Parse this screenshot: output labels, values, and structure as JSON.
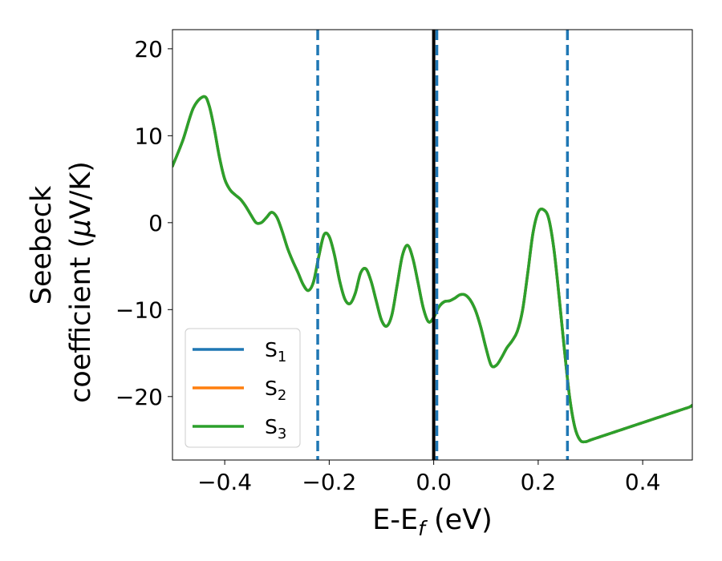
{
  "chart_data": {
    "type": "line",
    "xlabel": "E-E",
    "xlabel_subscript": "f",
    "xlabel_unit": " (eV)",
    "ylabel_line1": "Seebeck",
    "ylabel_line2_prefix": "coefficient  (",
    "ylabel_mu": "μ",
    "ylabel_line2_suffix": "V/K)",
    "xlim": [
      -0.5,
      0.495
    ],
    "ylim": [
      -27.3,
      22.2
    ],
    "xticks": [
      -0.4,
      -0.2,
      0.0,
      0.2,
      0.4
    ],
    "xtick_labels": [
      "−0.4",
      "−0.2",
      "0.0",
      "0.2",
      "0.4"
    ],
    "yticks": [
      -20,
      -10,
      0,
      10,
      20
    ],
    "ytick_labels": [
      "−20",
      "−10",
      "0",
      "10",
      "20"
    ],
    "grid": false,
    "legend_position": "lower-left",
    "series": [
      {
        "name": "S",
        "subscript": "1",
        "color": "#1f77b4",
        "ref": "curve"
      },
      {
        "name": "S",
        "subscript": "2",
        "color": "#ff7f0e",
        "ref": "curve"
      },
      {
        "name": "S",
        "subscript": "3",
        "color": "#2ca02c",
        "ref": "curve"
      }
    ],
    "curve": {
      "x": [
        -0.5,
        -0.48,
        -0.46,
        -0.44,
        -0.43,
        -0.42,
        -0.41,
        -0.4,
        -0.39,
        -0.38,
        -0.37,
        -0.36,
        -0.35,
        -0.34,
        -0.33,
        -0.32,
        -0.31,
        -0.3,
        -0.29,
        -0.28,
        -0.27,
        -0.26,
        -0.25,
        -0.24,
        -0.23,
        -0.22,
        -0.21,
        -0.2,
        -0.19,
        -0.18,
        -0.17,
        -0.16,
        -0.15,
        -0.14,
        -0.13,
        -0.12,
        -0.11,
        -0.1,
        -0.09,
        -0.08,
        -0.07,
        -0.06,
        -0.05,
        -0.04,
        -0.03,
        -0.02,
        -0.01,
        0.0,
        0.01,
        0.02,
        0.03,
        0.04,
        0.05,
        0.06,
        0.07,
        0.08,
        0.09,
        0.1,
        0.11,
        0.12,
        0.13,
        0.14,
        0.15,
        0.16,
        0.17,
        0.18,
        0.19,
        0.2,
        0.21,
        0.22,
        0.23,
        0.24,
        0.25,
        0.26,
        0.27,
        0.28,
        0.29,
        0.3,
        0.31,
        0.32,
        0.33,
        0.34,
        0.35,
        0.36,
        0.37,
        0.38,
        0.39,
        0.4,
        0.41,
        0.42,
        0.43,
        0.44,
        0.45,
        0.46,
        0.47,
        0.48,
        0.49,
        0.495
      ],
      "y": [
        6.5,
        9.5,
        13.2,
        14.5,
        13.5,
        10.8,
        7.5,
        5.0,
        3.8,
        3.2,
        2.7,
        1.9,
        0.9,
        0.0,
        0.0,
        0.6,
        1.2,
        0.6,
        -1.0,
        -2.9,
        -4.4,
        -5.7,
        -7.1,
        -7.8,
        -6.8,
        -3.9,
        -1.4,
        -1.6,
        -3.7,
        -6.7,
        -8.8,
        -9.3,
        -8.1,
        -5.8,
        -5.3,
        -6.7,
        -9.0,
        -11.2,
        -11.9,
        -10.6,
        -7.2,
        -3.8,
        -2.6,
        -4.1,
        -6.9,
        -9.8,
        -11.4,
        -10.9,
        -9.7,
        -9.1,
        -9.0,
        -8.7,
        -8.3,
        -8.3,
        -8.9,
        -10.1,
        -12.0,
        -14.4,
        -16.4,
        -16.4,
        -15.5,
        -14.4,
        -13.6,
        -12.5,
        -10.1,
        -5.8,
        -1.2,
        1.2,
        1.5,
        0.5,
        -3.0,
        -8.5,
        -14.5,
        -20.0,
        -23.5,
        -25.0,
        -25.2,
        -25.0,
        -24.8,
        -24.6,
        -24.4,
        -24.2,
        -24.0,
        -23.8,
        -23.6,
        -23.4,
        -23.2,
        -23.0,
        -22.8,
        -22.6,
        -22.4,
        -22.2,
        -22.0,
        -21.8,
        -21.6,
        -21.4,
        -21.2,
        -21.0
      ]
    },
    "vlines": [
      {
        "x": -0.222,
        "color": "#1f77b4",
        "style": "dashed"
      },
      {
        "x": 0.006,
        "color": "#1f77b4",
        "style": "dashed"
      },
      {
        "x": 0.256,
        "color": "#1f77b4",
        "style": "dashed"
      },
      {
        "x": 0.0,
        "color": "#000000",
        "style": "solid"
      }
    ]
  }
}
